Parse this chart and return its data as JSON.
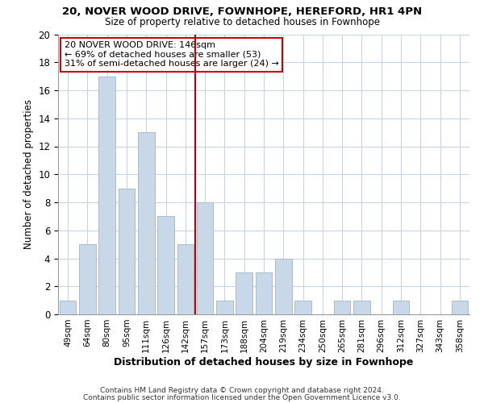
{
  "title1": "20, NOVER WOOD DRIVE, FOWNHOPE, HEREFORD, HR1 4PN",
  "title2": "Size of property relative to detached houses in Fownhope",
  "xlabel": "Distribution of detached houses by size in Fownhope",
  "ylabel": "Number of detached properties",
  "bin_labels": [
    "49sqm",
    "64sqm",
    "80sqm",
    "95sqm",
    "111sqm",
    "126sqm",
    "142sqm",
    "157sqm",
    "173sqm",
    "188sqm",
    "204sqm",
    "219sqm",
    "234sqm",
    "250sqm",
    "265sqm",
    "281sqm",
    "296sqm",
    "312sqm",
    "327sqm",
    "343sqm",
    "358sqm"
  ],
  "bar_values": [
    1,
    5,
    17,
    9,
    13,
    7,
    5,
    8,
    1,
    3,
    3,
    4,
    1,
    0,
    1,
    1,
    0,
    1,
    0,
    0,
    1
  ],
  "bar_color": "#c8d8e8",
  "bar_edge_color": "#aabccc",
  "highlight_index": 6,
  "highlight_line_color": "#bb0000",
  "annotation_box_color": "#ffffff",
  "annotation_box_edge": "#cc0000",
  "annotation_line1": "20 NOVER WOOD DRIVE: 146sqm",
  "annotation_line2": "← 69% of detached houses are smaller (53)",
  "annotation_line3": "31% of semi-detached houses are larger (24) →",
  "ylim": [
    0,
    20
  ],
  "yticks": [
    0,
    2,
    4,
    6,
    8,
    10,
    12,
    14,
    16,
    18,
    20
  ],
  "footer1": "Contains HM Land Registry data © Crown copyright and database right 2024.",
  "footer2": "Contains public sector information licensed under the Open Government Licence v3.0.",
  "grid_color": "#c8d4e0",
  "background_color": "#ffffff"
}
